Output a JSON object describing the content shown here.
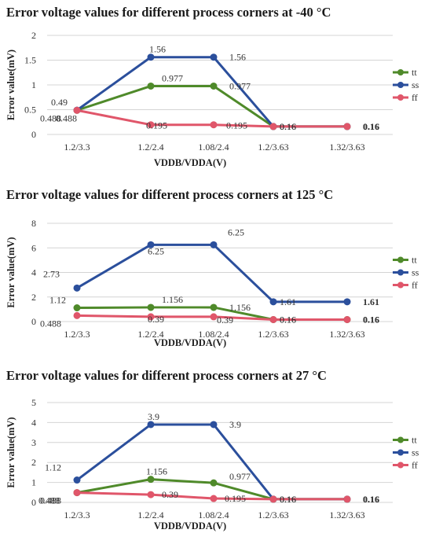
{
  "chart_data": [
    {
      "type": "line",
      "title": "Error voltage values for different process corners at -40 °C",
      "xlabel": "VDDB/VDDA(V)",
      "ylabel": "Error value(mV)",
      "categories": [
        "1.2/3.3",
        "1.2/2.4",
        "1.08/2.4",
        "1.2/3.63",
        "1.32/3.63"
      ],
      "ylim": [
        0,
        2
      ],
      "yticks": [
        "0",
        "0.5",
        "1",
        "1.5",
        "2"
      ],
      "grid": true,
      "legend": "right",
      "series": [
        {
          "name": "tt",
          "color": "#4f8a2a",
          "values": [
            0.488,
            0.977,
            0.977,
            0.16,
            0.16
          ],
          "labels": [
            "0.488",
            "0.977",
            "0.977",
            "0.16",
            "0.16"
          ]
        },
        {
          "name": "ss",
          "color": "#2b4f9c",
          "values": [
            0.49,
            1.56,
            1.56,
            0.16,
            0.16
          ],
          "labels": [
            "0.49",
            "1.56",
            "1.56",
            "0.16",
            "0.16"
          ]
        },
        {
          "name": "ff",
          "color": "#e0566a",
          "values": [
            0.488,
            0.195,
            0.195,
            0.16,
            0.16
          ],
          "labels": [
            "0.488",
            "0.195",
            "0.195",
            "0.16",
            "0.16"
          ]
        }
      ]
    },
    {
      "type": "line",
      "title": "Error voltage values for different process corners at 125 °C",
      "xlabel": "VDDB/VDDA(V)",
      "ylabel": "Error value(mV)",
      "categories": [
        "1.2/3.3",
        "1.2/2.4",
        "1.08/2.4",
        "1.2/3.63",
        "1.32/3.63"
      ],
      "ylim": [
        0,
        8
      ],
      "yticks": [
        "0",
        "2",
        "4",
        "6",
        "8"
      ],
      "grid": true,
      "legend": "right",
      "series": [
        {
          "name": "tt",
          "color": "#4f8a2a",
          "values": [
            1.12,
            1.156,
            1.156,
            0.16,
            0.16
          ],
          "labels": [
            "1.12",
            "1.156",
            "1.156",
            "0.16",
            "0.16"
          ]
        },
        {
          "name": "ss",
          "color": "#2b4f9c",
          "values": [
            2.73,
            6.25,
            6.25,
            1.61,
            1.61
          ],
          "labels": [
            "2.73",
            "6.25",
            "6.25",
            "1.61",
            "1.61"
          ]
        },
        {
          "name": "ff",
          "color": "#e0566a",
          "values": [
            0.488,
            0.39,
            0.39,
            0.16,
            0.16
          ],
          "labels": [
            "0.488",
            "0.39",
            "0.39",
            "0.16",
            "0.16"
          ]
        }
      ]
    },
    {
      "type": "line",
      "title": "Error voltage values for different process corners at 27 °C",
      "xlabel": "VDDB/VDDA(V)",
      "ylabel": "Error value(mV)",
      "categories": [
        "1.2/3.3",
        "1.2/2.4",
        "1.08/2.4",
        "1.2/3.63",
        "1.32/3.63"
      ],
      "ylim": [
        0,
        5
      ],
      "yticks": [
        "0",
        "1",
        "2",
        "3",
        "4",
        "5"
      ],
      "grid": true,
      "legend": "right",
      "series": [
        {
          "name": "tt",
          "color": "#4f8a2a",
          "values": [
            0.488,
            1.156,
            0.977,
            0.16,
            0.16
          ],
          "labels": [
            "0.488",
            "1.156",
            "0.977",
            "0.16",
            "0.16"
          ]
        },
        {
          "name": "ss",
          "color": "#2b4f9c",
          "values": [
            1.12,
            3.9,
            3.9,
            0.16,
            0.16
          ],
          "labels": [
            "1.12",
            "3.9",
            "3.9",
            "0.16",
            "0.16"
          ]
        },
        {
          "name": "ff",
          "color": "#e0566a",
          "values": [
            0.488,
            0.39,
            0.195,
            0.16,
            0.16
          ],
          "labels": [
            "0.488",
            "0.39",
            "0.195",
            "0.16",
            "0.16"
          ]
        }
      ]
    }
  ]
}
